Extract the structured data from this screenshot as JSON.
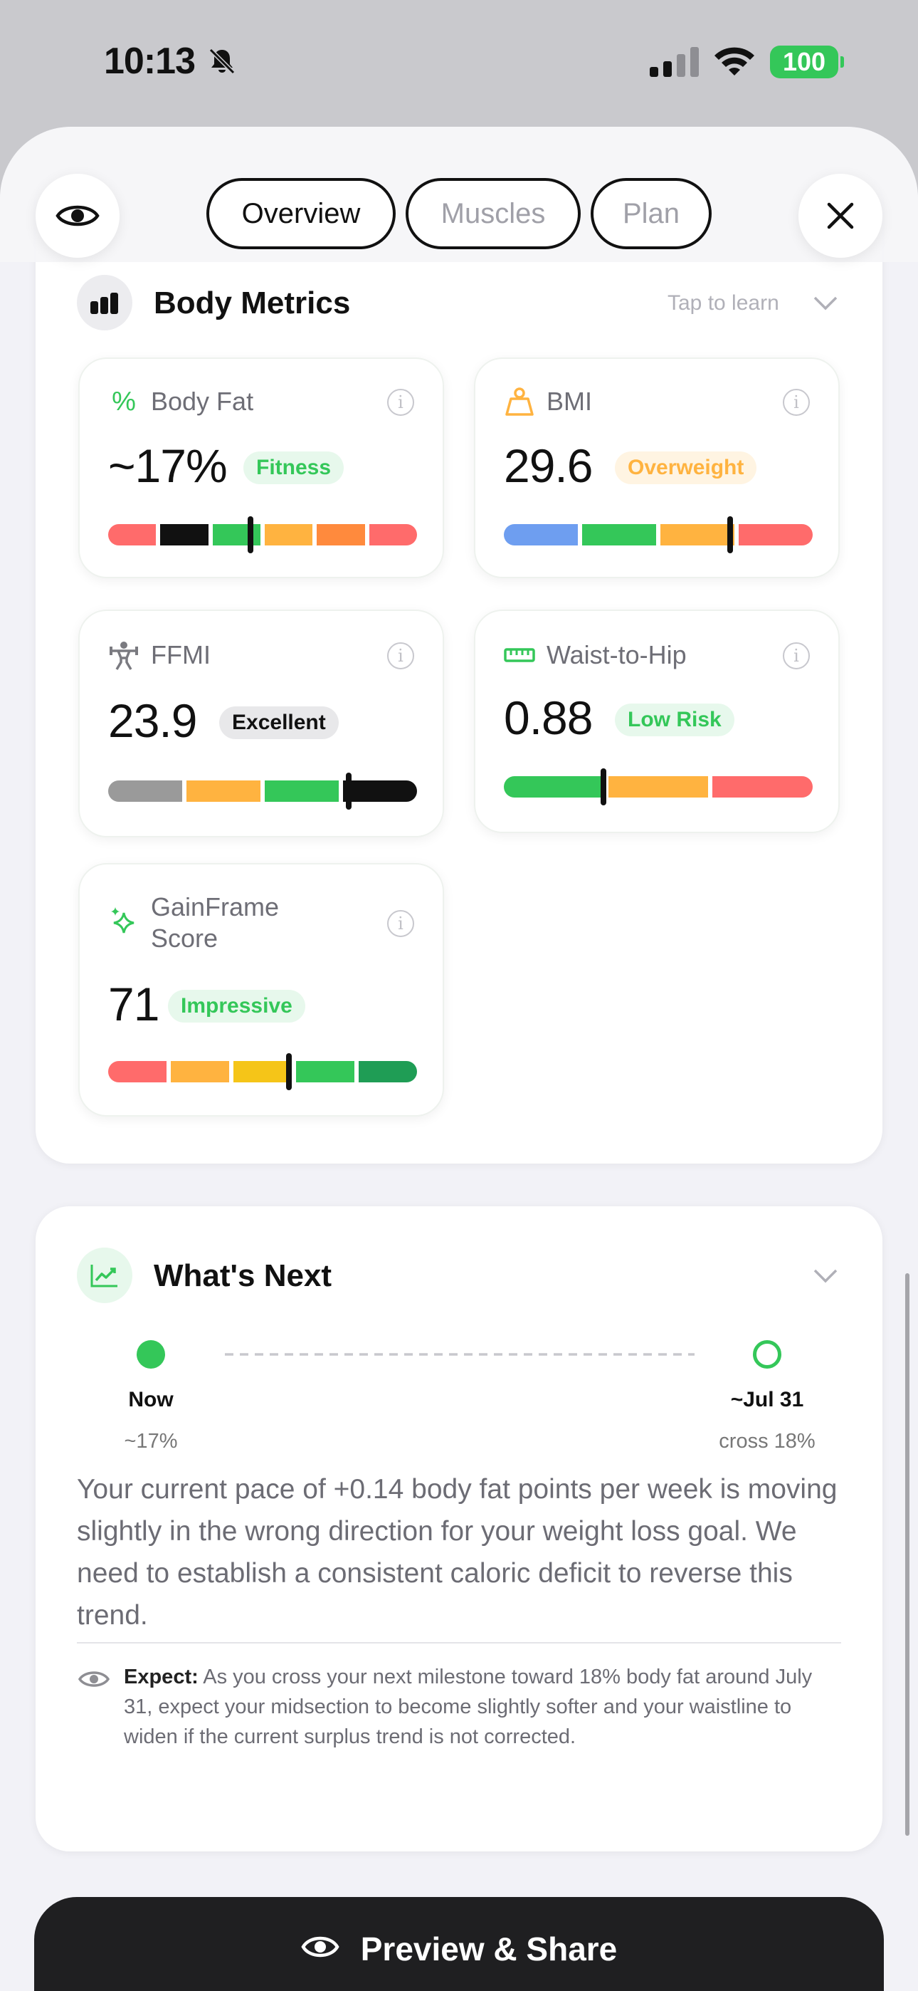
{
  "status": {
    "time": "10:13",
    "battery": "100"
  },
  "tabs": [
    {
      "label": "Overview"
    },
    {
      "label": "Muscles"
    },
    {
      "label": "Plan"
    }
  ],
  "body_metrics": {
    "title": "Body Metrics",
    "tap_hint": "Tap to learn",
    "metrics": [
      {
        "label": "Body Fat",
        "value": "~17%",
        "badge": "Fitness",
        "icon": "percent-icon",
        "marker_fraction": 0.46
      },
      {
        "label": "BMI",
        "value": "29.6",
        "badge": "Overweight",
        "icon": "scale-icon",
        "marker_fraction": 0.73
      },
      {
        "label": "FFMI",
        "value": "23.9",
        "badge": "Excellent",
        "icon": "lifter-icon",
        "marker_fraction": 0.78
      },
      {
        "label": "Waist-to-Hip",
        "value": "0.88",
        "badge": "Low Risk",
        "icon": "ruler-icon",
        "marker_fraction": 0.32
      },
      {
        "label": "GainFrame\nScore",
        "value": "71",
        "badge": "Impressive",
        "icon": "sparkle-icon",
        "marker_fraction": 0.68
      }
    ]
  },
  "whats_next": {
    "title": "What's Next",
    "now_label": "Now",
    "now_value": "~17%",
    "target_label": "~Jul 31",
    "target_value": "cross 18%",
    "paragraph": "Your current pace of +0.14 body fat points per week is moving slightly in the wrong direction for your weight loss goal. We need to establish a consistent caloric deficit to reverse this trend.",
    "expect_label": "Expect:",
    "expect_text": "As you cross your next milestone toward 18% body fat around July 31, expect your midsection to become slightly softer and your waistline to widen if the current surplus trend is not corrected."
  },
  "share": {
    "label": "Preview & Share"
  },
  "colors": {
    "green": "#34c759",
    "orange": "#ffb340",
    "red": "#ff6b6b",
    "blue": "#6e9ef0",
    "black": "#111111",
    "gray": "#9a9a9a",
    "yellow": "#f5c518",
    "dark_green": "#1f9d55",
    "deep_orange": "#ff8a3d"
  }
}
